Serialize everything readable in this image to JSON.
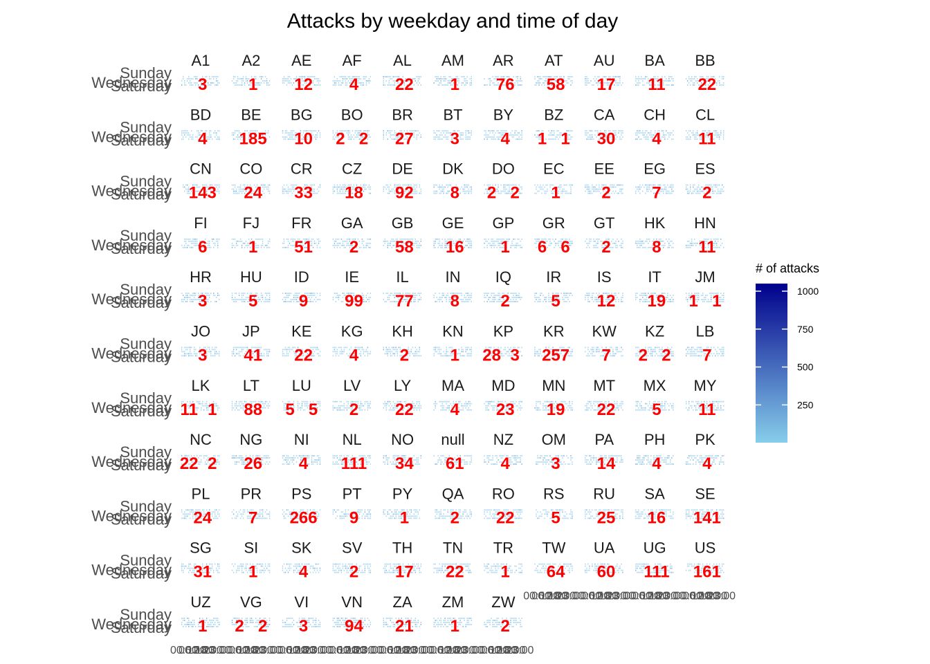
{
  "chart_data": {
    "type": "heatmap",
    "title": "Attacks by weekday and time of day",
    "facet_by": "country",
    "y_ticks": [
      "Wednesday",
      "Sunday",
      "Saturday"
    ],
    "x_ticks": [
      "00:00",
      "06:00",
      "12:00",
      "18:00",
      "23:00"
    ],
    "legend": {
      "title": "# of attacks",
      "ticks": [
        250,
        500,
        750,
        1000
      ],
      "range": [
        1,
        1050
      ],
      "low_color": "#87ceeb",
      "high_color": "#00008b",
      "placement": "right"
    },
    "label_color": "#ff0000",
    "panels": [
      {
        "country": "A1",
        "labels": [
          "3"
        ]
      },
      {
        "country": "A2",
        "labels": [
          "1"
        ]
      },
      {
        "country": "AE",
        "labels": [
          "12"
        ]
      },
      {
        "country": "AF",
        "labels": [
          "4"
        ]
      },
      {
        "country": "AL",
        "labels": [
          "22"
        ]
      },
      {
        "country": "AM",
        "labels": [
          "1"
        ]
      },
      {
        "country": "AR",
        "labels": [
          "76"
        ]
      },
      {
        "country": "AT",
        "labels": [
          "58"
        ]
      },
      {
        "country": "AU",
        "labels": [
          "17"
        ]
      },
      {
        "country": "BA",
        "labels": [
          "11"
        ]
      },
      {
        "country": "BB",
        "labels": [
          "22"
        ]
      },
      {
        "country": "BD",
        "labels": [
          "4"
        ]
      },
      {
        "country": "BE",
        "labels": [
          "185"
        ]
      },
      {
        "country": "BG",
        "labels": [
          "10"
        ]
      },
      {
        "country": "BO",
        "labels": [
          "2",
          "2"
        ]
      },
      {
        "country": "BR",
        "labels": [
          "27"
        ]
      },
      {
        "country": "BT",
        "labels": [
          "3"
        ]
      },
      {
        "country": "BY",
        "labels": [
          "4"
        ]
      },
      {
        "country": "BZ",
        "labels": [
          "1",
          "1"
        ]
      },
      {
        "country": "CA",
        "labels": [
          "30"
        ]
      },
      {
        "country": "CH",
        "labels": [
          "4"
        ]
      },
      {
        "country": "CL",
        "labels": [
          "11"
        ]
      },
      {
        "country": "CN",
        "labels": [
          "143"
        ]
      },
      {
        "country": "CO",
        "labels": [
          "24"
        ]
      },
      {
        "country": "CR",
        "labels": [
          "33"
        ]
      },
      {
        "country": "CZ",
        "labels": [
          "18"
        ]
      },
      {
        "country": "DE",
        "labels": [
          "92"
        ]
      },
      {
        "country": "DK",
        "labels": [
          "8"
        ]
      },
      {
        "country": "DO",
        "labels": [
          "2",
          "2"
        ]
      },
      {
        "country": "EC",
        "labels": [
          "1"
        ]
      },
      {
        "country": "EE",
        "labels": [
          "2"
        ]
      },
      {
        "country": "EG",
        "labels": [
          "7"
        ]
      },
      {
        "country": "ES",
        "labels": [
          "2"
        ]
      },
      {
        "country": "FI",
        "labels": [
          "6"
        ]
      },
      {
        "country": "FJ",
        "labels": [
          "1"
        ]
      },
      {
        "country": "FR",
        "labels": [
          "51"
        ]
      },
      {
        "country": "GA",
        "labels": [
          "2"
        ]
      },
      {
        "country": "GB",
        "labels": [
          "58"
        ]
      },
      {
        "country": "GE",
        "labels": [
          "16"
        ]
      },
      {
        "country": "GP",
        "labels": [
          "1"
        ]
      },
      {
        "country": "GR",
        "labels": [
          "6",
          "6"
        ]
      },
      {
        "country": "GT",
        "labels": [
          "2"
        ]
      },
      {
        "country": "HK",
        "labels": [
          "8"
        ]
      },
      {
        "country": "HN",
        "labels": [
          "11"
        ]
      },
      {
        "country": "HR",
        "labels": [
          "3"
        ]
      },
      {
        "country": "HU",
        "labels": [
          "5"
        ]
      },
      {
        "country": "ID",
        "labels": [
          "9"
        ]
      },
      {
        "country": "IE",
        "labels": [
          "99"
        ]
      },
      {
        "country": "IL",
        "labels": [
          "77"
        ]
      },
      {
        "country": "IN",
        "labels": [
          "8"
        ]
      },
      {
        "country": "IQ",
        "labels": [
          "2"
        ]
      },
      {
        "country": "IR",
        "labels": [
          "5"
        ]
      },
      {
        "country": "IS",
        "labels": [
          "12"
        ]
      },
      {
        "country": "IT",
        "labels": [
          "19"
        ]
      },
      {
        "country": "JM",
        "labels": [
          "1",
          "1"
        ]
      },
      {
        "country": "JO",
        "labels": [
          "3"
        ]
      },
      {
        "country": "JP",
        "labels": [
          "41"
        ]
      },
      {
        "country": "KE",
        "labels": [
          "22"
        ]
      },
      {
        "country": "KG",
        "labels": [
          "4"
        ]
      },
      {
        "country": "KH",
        "labels": [
          "2"
        ]
      },
      {
        "country": "KN",
        "labels": [
          "1"
        ]
      },
      {
        "country": "KP",
        "labels": [
          "28",
          "3"
        ]
      },
      {
        "country": "KR",
        "labels": [
          "257"
        ]
      },
      {
        "country": "KW",
        "labels": [
          "7"
        ]
      },
      {
        "country": "KZ",
        "labels": [
          "2",
          "2"
        ]
      },
      {
        "country": "LB",
        "labels": [
          "7"
        ]
      },
      {
        "country": "LK",
        "labels": [
          "11",
          "1"
        ]
      },
      {
        "country": "LT",
        "labels": [
          "88"
        ]
      },
      {
        "country": "LU",
        "labels": [
          "5",
          "5"
        ]
      },
      {
        "country": "LV",
        "labels": [
          "2"
        ]
      },
      {
        "country": "LY",
        "labels": [
          "22"
        ]
      },
      {
        "country": "MA",
        "labels": [
          "4"
        ]
      },
      {
        "country": "MD",
        "labels": [
          "23"
        ]
      },
      {
        "country": "MN",
        "labels": [
          "19"
        ]
      },
      {
        "country": "MT",
        "labels": [
          "22"
        ]
      },
      {
        "country": "MX",
        "labels": [
          "5"
        ]
      },
      {
        "country": "MY",
        "labels": [
          "11"
        ]
      },
      {
        "country": "NC",
        "labels": [
          "22",
          "2"
        ]
      },
      {
        "country": "NG",
        "labels": [
          "26"
        ]
      },
      {
        "country": "NI",
        "labels": [
          "4"
        ]
      },
      {
        "country": "NL",
        "labels": [
          "111"
        ]
      },
      {
        "country": "NO",
        "labels": [
          "34"
        ]
      },
      {
        "country": "null",
        "labels": [
          "61"
        ]
      },
      {
        "country": "NZ",
        "labels": [
          "4"
        ]
      },
      {
        "country": "OM",
        "labels": [
          "3"
        ]
      },
      {
        "country": "PA",
        "labels": [
          "14"
        ]
      },
      {
        "country": "PH",
        "labels": [
          "4"
        ]
      },
      {
        "country": "PK",
        "labels": [
          "4"
        ]
      },
      {
        "country": "PL",
        "labels": [
          "24"
        ]
      },
      {
        "country": "PR",
        "labels": [
          "7"
        ]
      },
      {
        "country": "PS",
        "labels": [
          "266"
        ]
      },
      {
        "country": "PT",
        "labels": [
          "9"
        ]
      },
      {
        "country": "PY",
        "labels": [
          "1"
        ]
      },
      {
        "country": "QA",
        "labels": [
          "2"
        ]
      },
      {
        "country": "RO",
        "labels": [
          "22"
        ]
      },
      {
        "country": "RS",
        "labels": [
          "5"
        ]
      },
      {
        "country": "RU",
        "labels": [
          "25"
        ]
      },
      {
        "country": "SA",
        "labels": [
          "16"
        ]
      },
      {
        "country": "SE",
        "labels": [
          "141"
        ]
      },
      {
        "country": "SG",
        "labels": [
          "31"
        ]
      },
      {
        "country": "SI",
        "labels": [
          "1"
        ]
      },
      {
        "country": "SK",
        "labels": [
          "4"
        ]
      },
      {
        "country": "SV",
        "labels": [
          "2"
        ]
      },
      {
        "country": "TH",
        "labels": [
          "17"
        ]
      },
      {
        "country": "TN",
        "labels": [
          "22"
        ]
      },
      {
        "country": "TR",
        "labels": [
          "1"
        ]
      },
      {
        "country": "TW",
        "labels": [
          "64"
        ]
      },
      {
        "country": "UA",
        "labels": [
          "60"
        ]
      },
      {
        "country": "UG",
        "labels": [
          "111"
        ]
      },
      {
        "country": "US",
        "labels": [
          "161"
        ]
      },
      {
        "country": "UZ",
        "labels": [
          "1"
        ]
      },
      {
        "country": "VG",
        "labels": [
          "2",
          "2"
        ]
      },
      {
        "country": "VI",
        "labels": [
          "3"
        ]
      },
      {
        "country": "VN",
        "labels": [
          "94"
        ]
      },
      {
        "country": "ZA",
        "labels": [
          "21"
        ]
      },
      {
        "country": "ZM",
        "labels": [
          "1"
        ]
      },
      {
        "country": "ZW",
        "labels": [
          "2"
        ]
      }
    ]
  }
}
